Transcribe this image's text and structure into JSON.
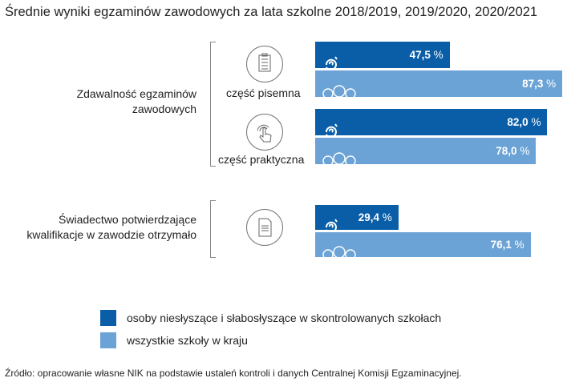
{
  "chart_data": {
    "type": "bar",
    "title": "Średnie wyniki egzaminów zawodowych za lata szkolne 2018/2019, 2019/2020, 2020/2021",
    "groups": [
      {
        "label": "Zdawalność egzaminów zawodowych",
        "subgroups": [
          {
            "label": "część pisemna",
            "icon": "checklist-icon",
            "values": [
              47.5,
              87.3
            ],
            "labels": [
              "47,5",
              "87,3"
            ]
          },
          {
            "label": "część praktyczna",
            "icon": "touch-hand-icon",
            "values": [
              82.0,
              78.0
            ],
            "labels": [
              "82,0",
              "78,0"
            ]
          }
        ]
      },
      {
        "label": "Świadectwo potwierdzające kwalifikacje w zawodzie otrzymało",
        "subgroups": [
          {
            "label": "",
            "icon": "document-icon",
            "values": [
              29.4,
              76.1
            ],
            "labels": [
              "29,4",
              "76,1"
            ]
          }
        ]
      }
    ],
    "unit": "%",
    "series": [
      {
        "name": "osoby niesłyszące i słabosłyszące w skontrolowanych szkołach",
        "color": "#0a5ea8",
        "icon": "hearing-impaired-icon"
      },
      {
        "name": "wszystkie szkoły w kraju",
        "color": "#6ba3d6",
        "icon": "people-group-icon"
      }
    ],
    "legend": "bottom-left"
  },
  "source": "Źródło: opracowanie własne NIK na podstawie ustaleń kontroli i danych Centralnej Komisji Egzaminacyjnej."
}
